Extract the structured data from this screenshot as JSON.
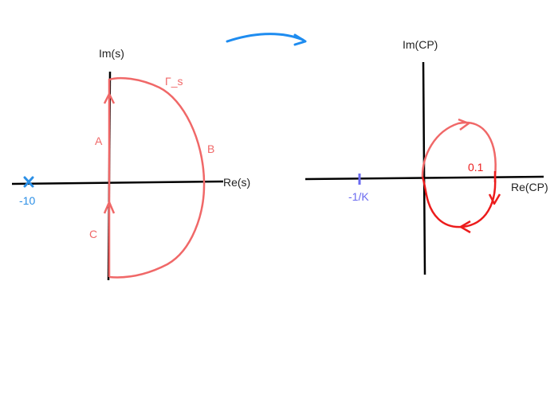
{
  "left_plane": {
    "x_axis_label": "Re(s)",
    "y_axis_label": "Im(s)",
    "contour_label": "Γ_s",
    "segment_labels": {
      "a": "A",
      "b": "B",
      "c": "C"
    },
    "pole_label": "-10"
  },
  "right_plane": {
    "x_axis_label": "Re(CP)",
    "y_axis_label": "Im(CP)",
    "crossing_label": "0.1",
    "critical_point_label": "-1/K"
  },
  "colors": {
    "axis": "#000000",
    "contour": "#f06868",
    "nyquist": "#ec1c1c",
    "arrow": "#1e8cf0",
    "pole": "#2b8fe6",
    "critical": "#6a6af0",
    "label": "#222222"
  }
}
